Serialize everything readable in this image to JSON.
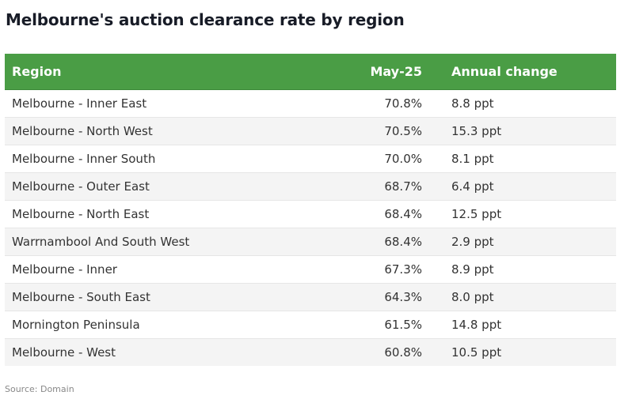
{
  "chart_data": {
    "type": "table",
    "title": "Melbourne's auction clearance rate by region",
    "columns": [
      "Region",
      "May-25",
      "Annual change"
    ],
    "rows": [
      {
        "region": "Melbourne - Inner East",
        "may": "70.8%",
        "change": "8.8 ppt"
      },
      {
        "region": "Melbourne - North West",
        "may": "70.5%",
        "change": "15.3 ppt"
      },
      {
        "region": "Melbourne - Inner South",
        "may": "70.0%",
        "change": "8.1 ppt"
      },
      {
        "region": "Melbourne - Outer East",
        "may": "68.7%",
        "change": "6.4 ppt"
      },
      {
        "region": "Melbourne - North East",
        "may": "68.4%",
        "change": "12.5 ppt"
      },
      {
        "region": "Warrnambool And South West",
        "may": "68.4%",
        "change": "2.9 ppt"
      },
      {
        "region": "Melbourne - Inner",
        "may": "67.3%",
        "change": "8.9 ppt"
      },
      {
        "region": "Melbourne - South East",
        "may": "64.3%",
        "change": "8.0 ppt"
      },
      {
        "region": "Mornington Peninsula",
        "may": "61.5%",
        "change": "14.8 ppt"
      },
      {
        "region": "Melbourne - West",
        "may": "60.8%",
        "change": "10.5 ppt"
      }
    ],
    "source": "Source: Domain"
  },
  "colors": {
    "header_bg": "#4a9d45",
    "header_text": "#ffffff",
    "row_alt_bg": "#f4f4f4"
  }
}
